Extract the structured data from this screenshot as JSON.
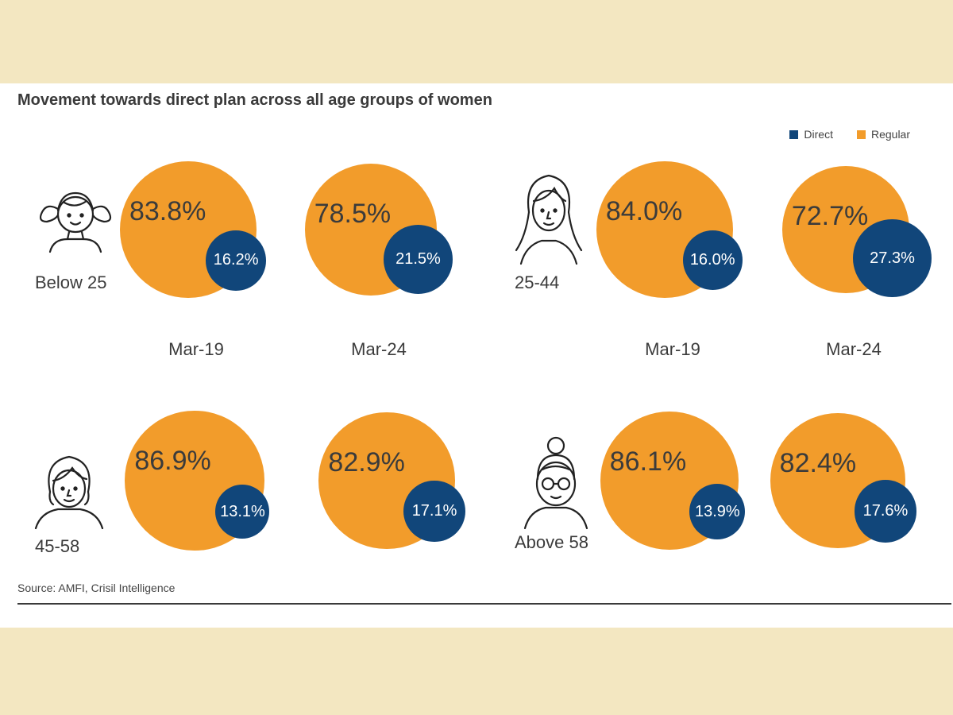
{
  "title": "Movement towards direct plan across all age groups of women",
  "legend": [
    {
      "label": "Direct",
      "color": "#11467a"
    },
    {
      "label": "Regular",
      "color": "#f29c2b"
    }
  ],
  "source": "Source: AMFI, Crisil Intelligence",
  "colors": {
    "direct": "#11467a",
    "regular": "#f29c2b",
    "background": "#f3e7c1"
  },
  "chart_data": {
    "type": "bubble",
    "title": "Movement towards direct plan across all age groups of women",
    "categories": [
      "Mar-19",
      "Mar-24"
    ],
    "groups": [
      {
        "label": "Below 25",
        "icon": "girl-pigtails-icon",
        "points": [
          {
            "date": "Mar-19",
            "regular": 83.8,
            "direct": 16.2
          },
          {
            "date": "Mar-24",
            "regular": 78.5,
            "direct": 21.5
          }
        ]
      },
      {
        "label": "25-44",
        "icon": "woman-long-hair-icon",
        "points": [
          {
            "date": "Mar-19",
            "regular": 84.0,
            "direct": 16.0
          },
          {
            "date": "Mar-24",
            "regular": 72.7,
            "direct": 27.3
          }
        ]
      },
      {
        "label": "45-58",
        "icon": "woman-short-hair-icon",
        "points": [
          {
            "date": "Mar-19",
            "regular": 86.9,
            "direct": 13.1
          },
          {
            "date": "Mar-24",
            "regular": 82.9,
            "direct": 17.1
          }
        ]
      },
      {
        "label": "Above 58",
        "icon": "woman-bun-glasses-icon",
        "points": [
          {
            "date": "Mar-19",
            "regular": 86.1,
            "direct": 13.9
          },
          {
            "date": "Mar-24",
            "regular": 82.4,
            "direct": 17.6
          }
        ]
      }
    ],
    "value_labels": {
      "Below 25": [
        [
          "83.8%",
          "16.2%"
        ],
        [
          "78.5%",
          "21.5%"
        ]
      ],
      "25-44": [
        [
          "84.0%",
          "16.0%"
        ],
        [
          "72.7%",
          "27.3%"
        ]
      ],
      "45-58": [
        [
          "86.9%",
          "13.1%"
        ],
        [
          "82.9%",
          "17.1%"
        ]
      ],
      "Above 58": [
        [
          "86.1%",
          "13.9%"
        ],
        [
          "82.4%",
          "17.6%"
        ]
      ]
    }
  }
}
